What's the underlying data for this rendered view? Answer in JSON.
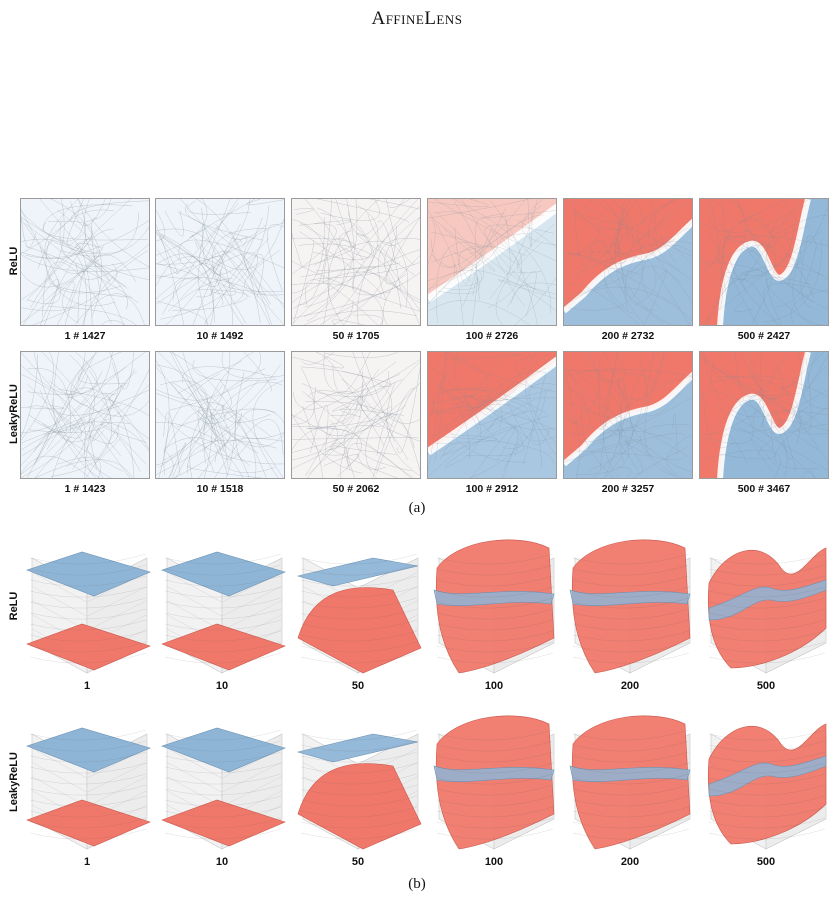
{
  "title": "AffineLens",
  "colors": {
    "red": "#f0786a",
    "blue": "#8fb5d6",
    "boundary": "#ffffff",
    "bg_light": "#eef4f9"
  },
  "part_a": {
    "caption": "(a)",
    "rows": [
      {
        "label": "ReLU",
        "panels": [
          {
            "label": "1 # 1427",
            "state": "flat-light"
          },
          {
            "label": "10 # 1492",
            "state": "flat-light"
          },
          {
            "label": "50 # 1705",
            "state": "flat-faint-red"
          },
          {
            "label": "100 # 2726",
            "state": "diagonal-faded"
          },
          {
            "label": "200 # 2732",
            "state": "stepped"
          },
          {
            "label": "500 # 2427",
            "state": "wiggle"
          }
        ]
      },
      {
        "label": "LeakyReLU",
        "panels": [
          {
            "label": "1 # 1423",
            "state": "flat-light"
          },
          {
            "label": "10 # 1518",
            "state": "flat-light"
          },
          {
            "label": "50 # 2062",
            "state": "flat-faint-red"
          },
          {
            "label": "100 # 2912",
            "state": "diagonal"
          },
          {
            "label": "200 # 3257",
            "state": "stepped"
          },
          {
            "label": "500 # 3467",
            "state": "wiggle"
          }
        ]
      }
    ]
  },
  "part_b": {
    "caption": "(b)",
    "rows": [
      {
        "label": "ReLU",
        "panels": [
          {
            "label": "1",
            "state": "separate"
          },
          {
            "label": "10",
            "state": "separate"
          },
          {
            "label": "50",
            "state": "tilted"
          },
          {
            "label": "100",
            "state": "curved"
          },
          {
            "label": "200",
            "state": "curved"
          },
          {
            "label": "500",
            "state": "twisted"
          }
        ]
      },
      {
        "label": "LeakyReLU",
        "panels": [
          {
            "label": "1",
            "state": "separate"
          },
          {
            "label": "10",
            "state": "separate"
          },
          {
            "label": "50",
            "state": "tilted"
          },
          {
            "label": "100",
            "state": "curved"
          },
          {
            "label": "200",
            "state": "curved"
          },
          {
            "label": "500",
            "state": "twisted"
          }
        ]
      }
    ]
  }
}
